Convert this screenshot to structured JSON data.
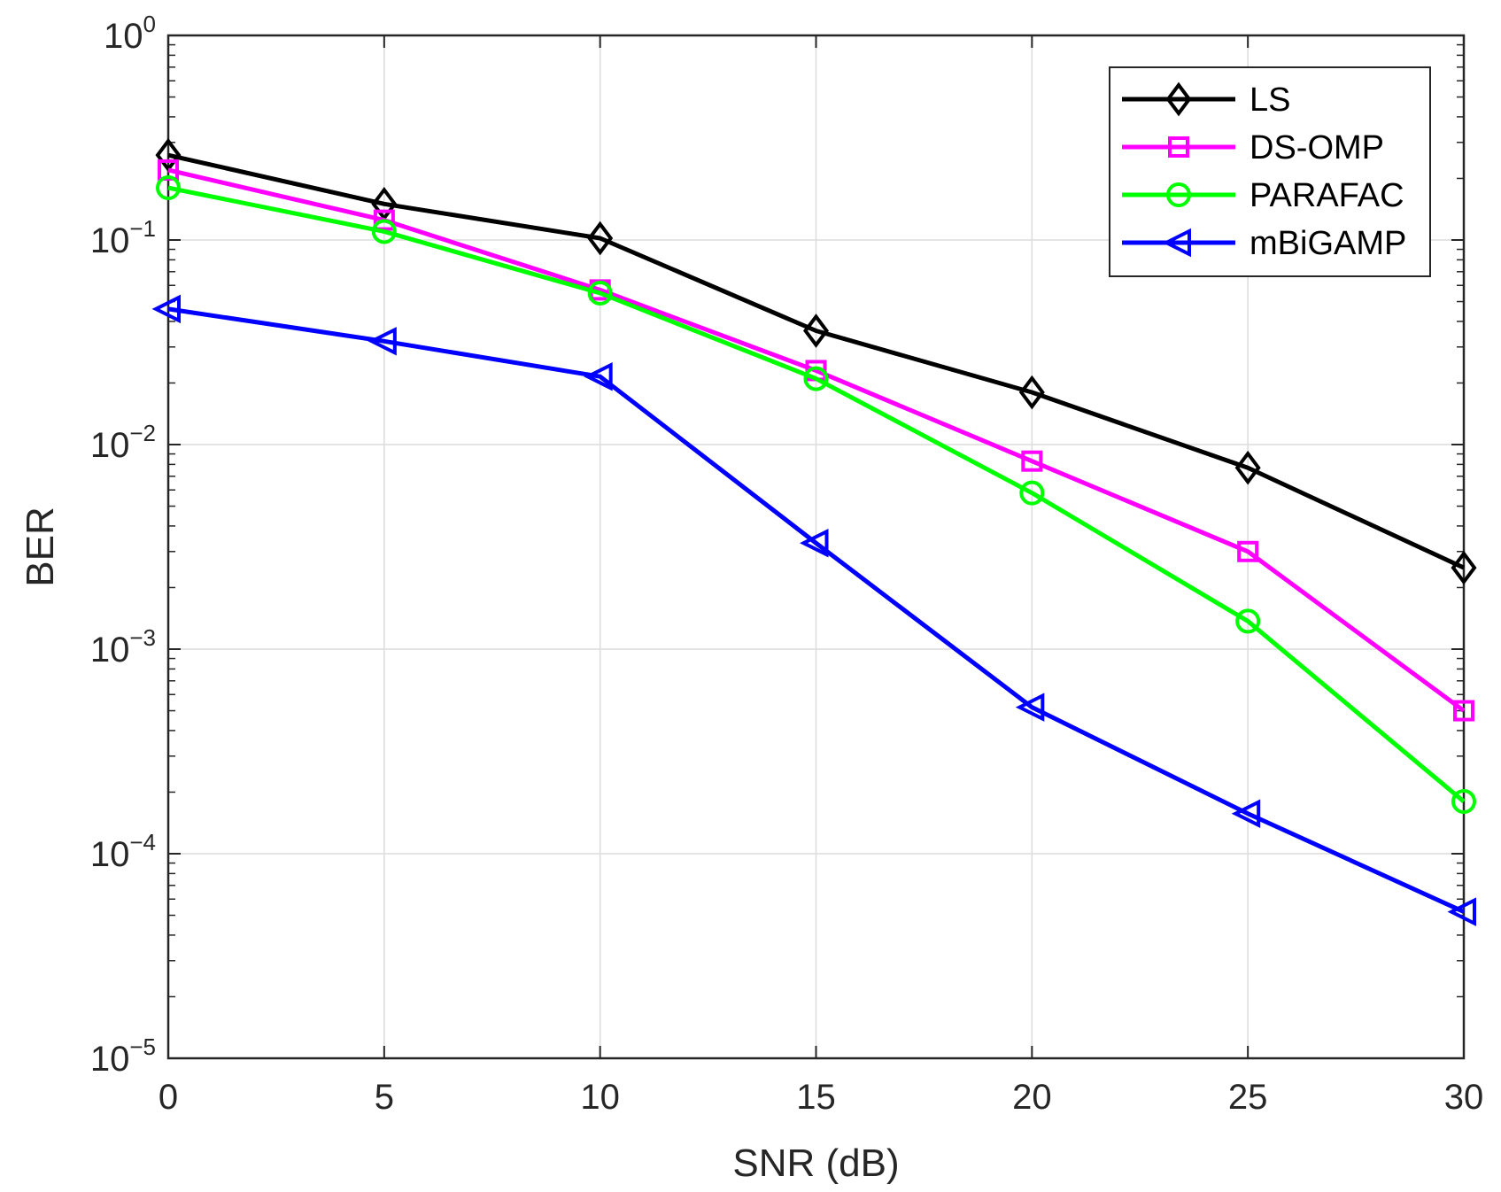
{
  "chart_data": {
    "type": "line",
    "xlabel": "SNR (dB)",
    "ylabel": "BER",
    "yscale": "log",
    "xlim": [
      0,
      30
    ],
    "ylim": [
      1e-05,
      1
    ],
    "x": [
      0,
      5,
      10,
      15,
      20,
      25,
      30
    ],
    "x_ticks": [
      0,
      5,
      10,
      15,
      20,
      25,
      30
    ],
    "x_tick_labels": [
      "0",
      "5",
      "10",
      "15",
      "20",
      "25",
      "30"
    ],
    "y_ticks": [
      {
        "value": 1,
        "base": "10",
        "exp": "0"
      },
      {
        "value": 0.1,
        "base": "10",
        "exp": "−1"
      },
      {
        "value": 0.01,
        "base": "10",
        "exp": "−2"
      },
      {
        "value": 0.001,
        "base": "10",
        "exp": "−3"
      },
      {
        "value": 0.0001,
        "base": "10",
        "exp": "−4"
      },
      {
        "value": 1e-05,
        "base": "10",
        "exp": "−5"
      }
    ],
    "grid": true,
    "legend_position": "top-right",
    "series": [
      {
        "name": "LS",
        "color": "#000000",
        "marker": "diamond",
        "values": [
          0.26,
          0.15,
          0.102,
          0.036,
          0.018,
          0.0077,
          0.0025
        ]
      },
      {
        "name": "DS-OMP",
        "color": "#ff00ff",
        "marker": "square",
        "values": [
          0.22,
          0.125,
          0.057,
          0.023,
          0.0083,
          0.003,
          0.0005
        ]
      },
      {
        "name": "PARAFAC",
        "color": "#00ff00",
        "marker": "circle",
        "values": [
          0.18,
          0.11,
          0.055,
          0.021,
          0.0058,
          0.00137,
          0.00018
        ]
      },
      {
        "name": "mBiGAMP",
        "color": "#0000ff",
        "marker": "triangle-left",
        "values": [
          0.046,
          0.032,
          0.0215,
          0.0033,
          0.00052,
          0.000157,
          5.2e-05
        ]
      }
    ]
  }
}
